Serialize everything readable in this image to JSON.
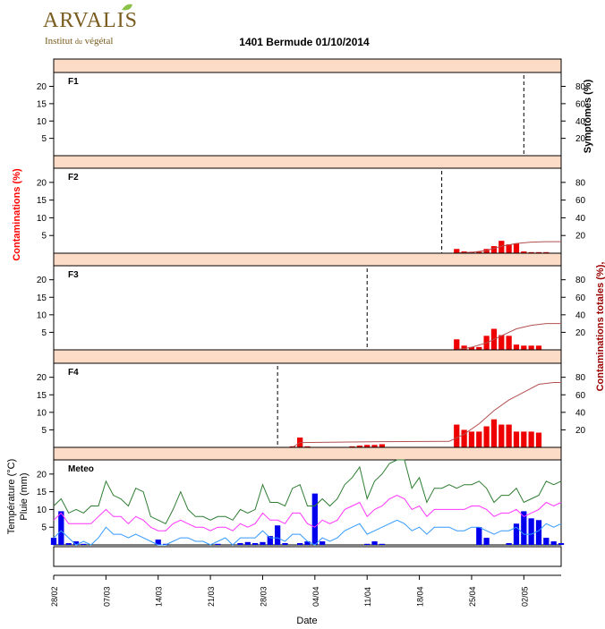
{
  "logo": {
    "word": "ARVALIS",
    "tagline_a": "Institut",
    "tagline_b": "du",
    "tagline_c": "végétal"
  },
  "title": "1401 Bermude 01/10/2014",
  "colors": {
    "strip": "#fcdcc6",
    "bar_red": "#ee0000",
    "left_axis_red": "#ff0000",
    "right_axis_red": "#990000",
    "cumul_line": "#b35050",
    "rain": "#0000ee",
    "tmax": "#2e7d32",
    "tmean": "#ff33ff",
    "tmin": "#3399ff"
  },
  "chart_data": {
    "type": "bar",
    "x_axis": {
      "label": "Date",
      "ticks": [
        {
          "label": "28/02",
          "day": 0
        },
        {
          "label": "07/03",
          "day": 7
        },
        {
          "label": "14/03",
          "day": 14
        },
        {
          "label": "21/03",
          "day": 21
        },
        {
          "label": "28/03",
          "day": 28
        },
        {
          "label": "04/04",
          "day": 35
        },
        {
          "label": "11/04",
          "day": 42
        },
        {
          "label": "18/04",
          "day": 49
        },
        {
          "label": "25/04",
          "day": 56
        },
        {
          "label": "02/05",
          "day": 63
        }
      ],
      "range": [
        0,
        68
      ]
    },
    "left_axis_label": "Contaminations (%)",
    "right_axis_label_top": "Symptômes (%)",
    "right_axis_label_bottom": "Contaminations totales (%),",
    "left_ticks": [
      "5",
      "10",
      "15",
      "20"
    ],
    "right_ticks": [
      "20",
      "40",
      "60",
      "80"
    ],
    "left_ylim": [
      0,
      24
    ],
    "right_ylim": [
      0,
      96
    ],
    "panels": [
      {
        "name": "F1",
        "dashed_line_day": 63,
        "bars": [],
        "cumulative": []
      },
      {
        "name": "F2",
        "dashed_line_day": 52,
        "bars": [
          [
            54,
            1.2
          ],
          [
            55,
            0.5
          ],
          [
            56,
            0.4
          ],
          [
            57,
            0.4
          ],
          [
            58,
            1.2
          ],
          [
            59,
            2.0
          ],
          [
            60,
            3.5
          ],
          [
            61,
            2.5
          ],
          [
            62,
            2.8
          ],
          [
            63,
            0.5
          ],
          [
            64,
            0.3
          ],
          [
            65,
            0.3
          ],
          [
            66,
            0.3
          ]
        ],
        "cumulative": [
          [
            54,
            0.2
          ],
          [
            56,
            1
          ],
          [
            58,
            3
          ],
          [
            60,
            8
          ],
          [
            62,
            11
          ],
          [
            64,
            12.5
          ],
          [
            66,
            13
          ],
          [
            68,
            13
          ]
        ]
      },
      {
        "name": "F3",
        "dashed_line_day": 42,
        "bars": [
          [
            54,
            3.0
          ],
          [
            55,
            1.2
          ],
          [
            56,
            0.8
          ],
          [
            57,
            0.8
          ],
          [
            58,
            4.0
          ],
          [
            59,
            6.0
          ],
          [
            60,
            4.2
          ],
          [
            61,
            4.0
          ],
          [
            62,
            1.5
          ],
          [
            63,
            1.2
          ],
          [
            64,
            1.2
          ],
          [
            65,
            1.2
          ]
        ],
        "cumulative": [
          [
            54,
            0.3
          ],
          [
            56,
            3
          ],
          [
            58,
            8
          ],
          [
            60,
            16
          ],
          [
            62,
            24
          ],
          [
            64,
            28
          ],
          [
            66,
            30
          ],
          [
            68,
            30
          ]
        ]
      },
      {
        "name": "F4",
        "dashed_line_day": 30,
        "bars": [
          [
            32,
            0.3
          ],
          [
            33,
            2.8
          ],
          [
            34,
            0.3
          ],
          [
            40,
            0.3
          ],
          [
            41,
            0.5
          ],
          [
            42,
            0.7
          ],
          [
            43,
            0.7
          ],
          [
            44,
            0.9
          ],
          [
            54,
            6.5
          ],
          [
            55,
            5.0
          ],
          [
            56,
            4.5
          ],
          [
            57,
            4.5
          ],
          [
            58,
            6.0
          ],
          [
            59,
            8.0
          ],
          [
            60,
            6.5
          ],
          [
            61,
            6.5
          ],
          [
            62,
            4.5
          ],
          [
            63,
            4.5
          ],
          [
            64,
            4.5
          ],
          [
            65,
            4.2
          ]
        ],
        "cumulative": [
          [
            32,
            0
          ],
          [
            33,
            5.5
          ],
          [
            44,
            6.5
          ],
          [
            53,
            6.8
          ],
          [
            55,
            15
          ],
          [
            57,
            27
          ],
          [
            59,
            42
          ],
          [
            61,
            54
          ],
          [
            63,
            63
          ],
          [
            65,
            72
          ],
          [
            67,
            74
          ],
          [
            68,
            74
          ]
        ]
      }
    ],
    "meteo": {
      "name": "Meteo",
      "ylabel": "Température (°C)",
      "ylabel2": "Pluie (mm)",
      "ticks": [
        "5",
        "10",
        "15",
        "20"
      ],
      "ylim": [
        0,
        24
      ],
      "rain": [
        [
          0,
          2
        ],
        [
          1,
          9.5
        ],
        [
          2,
          0.5
        ],
        [
          3,
          1
        ],
        [
          4,
          0.3
        ],
        [
          14,
          1.5
        ],
        [
          15,
          0.3
        ],
        [
          22,
          0.3
        ],
        [
          25,
          0.5
        ],
        [
          26,
          0.8
        ],
        [
          27,
          0.5
        ],
        [
          28,
          0.8
        ],
        [
          29,
          2.5
        ],
        [
          30,
          5.5
        ],
        [
          31,
          0.5
        ],
        [
          33,
          0.5
        ],
        [
          34,
          1
        ],
        [
          35,
          14.5
        ],
        [
          36,
          1
        ],
        [
          42,
          0.3
        ],
        [
          43,
          1
        ],
        [
          44,
          0.3
        ],
        [
          57,
          5
        ],
        [
          58,
          2
        ],
        [
          61,
          0.5
        ],
        [
          62,
          6
        ],
        [
          63,
          9.5
        ],
        [
          64,
          7.5
        ],
        [
          65,
          7
        ],
        [
          66,
          2
        ],
        [
          67,
          1
        ],
        [
          68,
          0.5
        ]
      ],
      "tmax": [
        [
          0,
          11
        ],
        [
          1,
          13
        ],
        [
          2,
          9
        ],
        [
          3,
          10
        ],
        [
          4,
          9
        ],
        [
          5,
          11
        ],
        [
          6,
          11
        ],
        [
          7,
          18
        ],
        [
          8,
          14
        ],
        [
          9,
          13
        ],
        [
          10,
          11
        ],
        [
          11,
          16
        ],
        [
          12,
          15
        ],
        [
          13,
          8
        ],
        [
          14,
          7
        ],
        [
          15,
          6
        ],
        [
          16,
          10
        ],
        [
          17,
          15
        ],
        [
          18,
          10
        ],
        [
          19,
          8
        ],
        [
          20,
          8
        ],
        [
          21,
          7
        ],
        [
          22,
          8
        ],
        [
          23,
          8
        ],
        [
          24,
          7
        ],
        [
          25,
          10
        ],
        [
          26,
          9
        ],
        [
          27,
          10
        ],
        [
          28,
          17
        ],
        [
          29,
          12
        ],
        [
          30,
          12
        ],
        [
          31,
          11
        ],
        [
          32,
          16
        ],
        [
          33,
          17
        ],
        [
          34,
          11
        ],
        [
          35,
          11
        ],
        [
          36,
          13
        ],
        [
          37,
          11
        ],
        [
          38,
          13
        ],
        [
          39,
          17
        ],
        [
          40,
          19
        ],
        [
          41,
          22
        ],
        [
          42,
          13
        ],
        [
          43,
          18
        ],
        [
          44,
          20
        ],
        [
          45,
          23
        ],
        [
          46,
          25
        ],
        [
          47,
          24
        ],
        [
          48,
          16
        ],
        [
          49,
          19
        ],
        [
          50,
          12
        ],
        [
          51,
          16
        ],
        [
          52,
          16
        ],
        [
          53,
          17
        ],
        [
          54,
          16
        ],
        [
          55,
          17
        ],
        [
          56,
          17
        ],
        [
          57,
          18
        ],
        [
          58,
          16
        ],
        [
          59,
          12
        ],
        [
          60,
          14
        ],
        [
          61,
          14
        ],
        [
          62,
          16
        ],
        [
          63,
          12
        ],
        [
          64,
          13
        ],
        [
          65,
          14
        ],
        [
          66,
          18
        ],
        [
          67,
          17
        ],
        [
          68,
          18
        ]
      ],
      "tmean": [
        [
          0,
          7
        ],
        [
          1,
          9
        ],
        [
          2,
          6
        ],
        [
          3,
          6
        ],
        [
          4,
          6
        ],
        [
          5,
          6
        ],
        [
          6,
          8
        ],
        [
          7,
          10
        ],
        [
          8,
          8
        ],
        [
          9,
          8
        ],
        [
          10,
          6
        ],
        [
          11,
          8
        ],
        [
          12,
          7
        ],
        [
          13,
          5
        ],
        [
          14,
          4
        ],
        [
          15,
          4
        ],
        [
          16,
          6
        ],
        [
          17,
          7
        ],
        [
          18,
          6
        ],
        [
          19,
          5
        ],
        [
          20,
          5
        ],
        [
          21,
          4
        ],
        [
          22,
          5
        ],
        [
          23,
          5
        ],
        [
          24,
          4
        ],
        [
          25,
          6
        ],
        [
          26,
          5
        ],
        [
          27,
          6
        ],
        [
          28,
          9
        ],
        [
          29,
          7
        ],
        [
          30,
          7
        ],
        [
          31,
          6
        ],
        [
          32,
          9
        ],
        [
          33,
          9
        ],
        [
          34,
          6
        ],
        [
          35,
          5
        ],
        [
          36,
          7
        ],
        [
          37,
          6
        ],
        [
          38,
          7
        ],
        [
          39,
          10
        ],
        [
          40,
          11
        ],
        [
          41,
          12
        ],
        [
          42,
          8
        ],
        [
          43,
          10
        ],
        [
          44,
          11
        ],
        [
          45,
          13
        ],
        [
          46,
          14
        ],
        [
          47,
          13
        ],
        [
          48,
          10
        ],
        [
          49,
          11
        ],
        [
          50,
          8
        ],
        [
          51,
          10
        ],
        [
          52,
          10
        ],
        [
          53,
          10
        ],
        [
          54,
          10
        ],
        [
          55,
          10
        ],
        [
          56,
          11
        ],
        [
          57,
          11
        ],
        [
          58,
          10
        ],
        [
          59,
          8
        ],
        [
          60,
          9
        ],
        [
          61,
          9
        ],
        [
          62,
          10
        ],
        [
          63,
          8
        ],
        [
          64,
          9
        ],
        [
          65,
          10
        ],
        [
          66,
          12
        ],
        [
          67,
          11
        ],
        [
          68,
          12
        ]
      ],
      "tmin": [
        [
          0,
          2
        ],
        [
          1,
          4
        ],
        [
          2,
          2
        ],
        [
          3,
          0
        ],
        [
          4,
          1
        ],
        [
          5,
          0
        ],
        [
          6,
          2
        ],
        [
          7,
          5
        ],
        [
          8,
          3
        ],
        [
          9,
          3
        ],
        [
          10,
          2
        ],
        [
          11,
          3
        ],
        [
          12,
          2
        ],
        [
          13,
          1
        ],
        [
          14,
          0
        ],
        [
          15,
          0
        ],
        [
          16,
          1
        ],
        [
          17,
          2
        ],
        [
          18,
          2
        ],
        [
          19,
          1
        ],
        [
          20,
          1
        ],
        [
          21,
          0
        ],
        [
          22,
          1
        ],
        [
          23,
          2
        ],
        [
          24,
          0
        ],
        [
          25,
          2
        ],
        [
          26,
          2
        ],
        [
          27,
          2
        ],
        [
          28,
          4
        ],
        [
          29,
          2
        ],
        [
          30,
          2
        ],
        [
          31,
          1
        ],
        [
          32,
          3
        ],
        [
          33,
          3
        ],
        [
          34,
          1
        ],
        [
          35,
          0
        ],
        [
          36,
          2
        ],
        [
          37,
          1
        ],
        [
          38,
          2
        ],
        [
          39,
          4
        ],
        [
          40,
          5
        ],
        [
          41,
          6
        ],
        [
          42,
          3
        ],
        [
          43,
          4
        ],
        [
          44,
          5
        ],
        [
          45,
          6
        ],
        [
          46,
          7
        ],
        [
          47,
          6
        ],
        [
          48,
          4
        ],
        [
          49,
          5
        ],
        [
          50,
          3
        ],
        [
          51,
          5
        ],
        [
          52,
          5
        ],
        [
          53,
          5
        ],
        [
          54,
          4
        ],
        [
          55,
          4
        ],
        [
          56,
          5
        ],
        [
          57,
          5
        ],
        [
          58,
          4
        ],
        [
          59,
          3
        ],
        [
          60,
          4
        ],
        [
          61,
          4
        ],
        [
          62,
          5
        ],
        [
          63,
          3
        ],
        [
          64,
          3
        ],
        [
          65,
          4
        ],
        [
          66,
          6
        ],
        [
          67,
          5
        ],
        [
          68,
          6
        ]
      ]
    }
  }
}
